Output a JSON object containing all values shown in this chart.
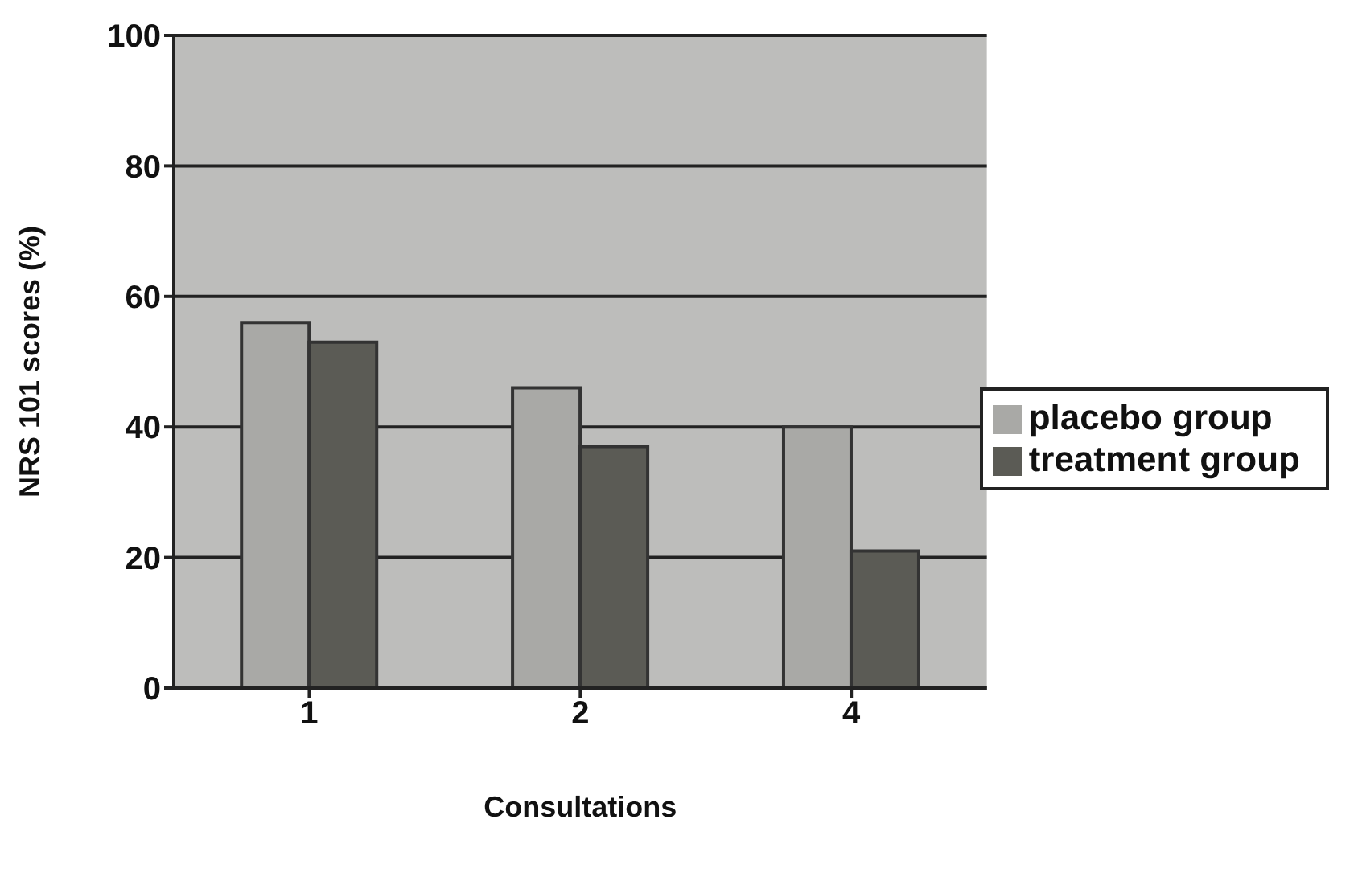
{
  "chart_data": {
    "type": "bar",
    "xlabel": "Consultations",
    "ylabel": "NRS 101 scores (%)",
    "categories": [
      "1",
      "2",
      "4"
    ],
    "series": [
      {
        "name": "placebo group",
        "color": "#a9a9a6",
        "values": [
          56,
          46,
          40
        ]
      },
      {
        "name": "treatment group",
        "color": "#5b5b55",
        "values": [
          53,
          37,
          21
        ]
      }
    ],
    "ylim": [
      0,
      100
    ],
    "yticks": [
      0,
      20,
      40,
      60,
      80,
      100
    ],
    "grid": "y",
    "legend": "right"
  }
}
